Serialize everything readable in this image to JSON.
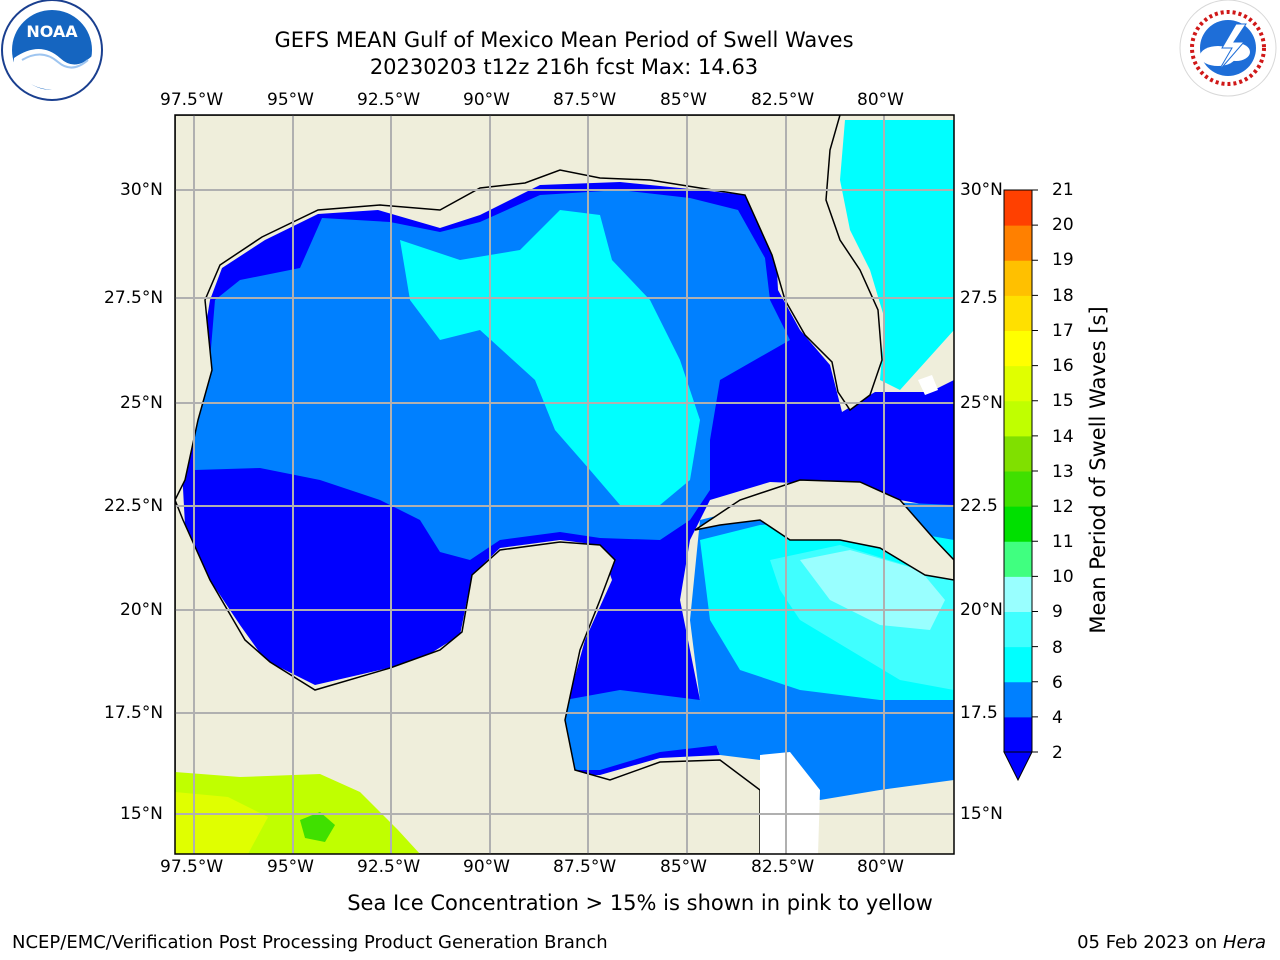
{
  "header": {
    "title_line1": "GEFS MEAN Gulf of Mexico Mean Period of Swell Waves",
    "title_line2": "20230203 t12z 216h fcst   Max: 14.63"
  },
  "logos": {
    "left": {
      "icon": "noaa-logo",
      "text": "NOAA"
    },
    "right": {
      "icon": "national-weather-service-logo"
    }
  },
  "map": {
    "colors": {
      "land": "#efeedb",
      "ocean_white": "#ffffff",
      "grid": "#b0b0b0",
      "coast": "#000000"
    },
    "lon_ticks": [
      "97.5°W",
      "95°W",
      "92.5°W",
      "90°W",
      "87.5°W",
      "85°W",
      "82.5°W",
      "80°W"
    ],
    "lat_ticks_left": [
      "30°N",
      "27.5°N",
      "25°N",
      "22.5°N",
      "20°N",
      "17.5°N",
      "15°N"
    ],
    "lat_ticks_right": [
      "30°N",
      "27.5",
      "25°N",
      "22.5",
      "20°N",
      "17.5",
      "15°N"
    ]
  },
  "colorbar": {
    "label": "Mean Period of Swell Waves [s]",
    "ticks": [
      "21",
      "20",
      "19",
      "18",
      "17",
      "16",
      "15",
      "14",
      "13",
      "12",
      "11",
      "10",
      "9",
      "8",
      "6",
      "4",
      "2"
    ],
    "colors": [
      "#0000ff",
      "#0080ff",
      "#00ffff",
      "#40ffff",
      "#99ffff",
      "#40ff80",
      "#00e000",
      "#40e000",
      "#80e000",
      "#c0ff00",
      "#e0ff00",
      "#ffff00",
      "#ffe000",
      "#ffc000",
      "#ff8000",
      "#ff4000",
      "#ff0000"
    ]
  },
  "footer": {
    "note": "Sea Ice Concentration > 15% is shown in pink to yellow",
    "credit": "NCEP/EMC/Verification Post Processing Product Generation Branch",
    "date_prefix": "05 Feb 2023 on ",
    "machine": "Hera"
  }
}
